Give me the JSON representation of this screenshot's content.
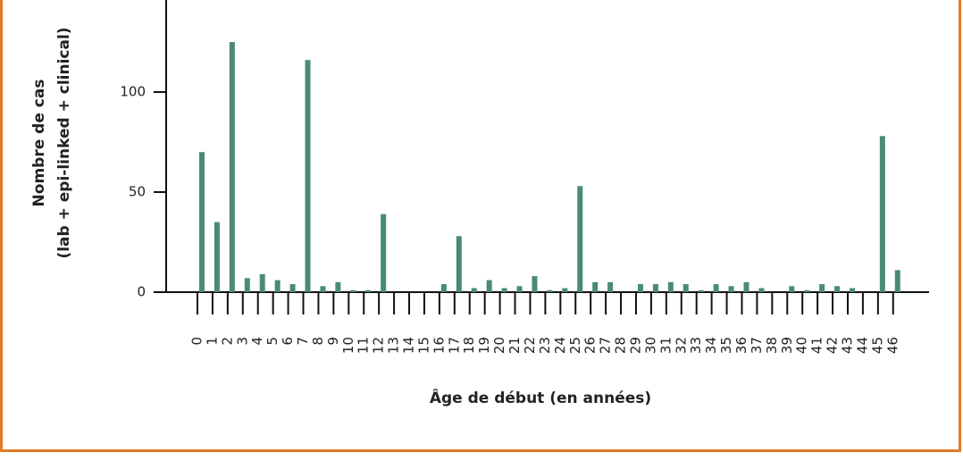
{
  "chart_data": {
    "type": "bar",
    "ylabel": [
      "Nombre de cas",
      "(lab + epi-linked + clinical)"
    ],
    "xlabel": "Âge de début (en années)",
    "categories": [
      "0",
      "1",
      "2",
      "3",
      "4",
      "5",
      "6",
      "7",
      "8",
      "9",
      "10",
      "11",
      "12",
      "13",
      "14",
      "15",
      "16",
      "17",
      "18",
      "19",
      "20",
      "21",
      "22",
      "23",
      "24",
      "25",
      "26",
      "27",
      "28",
      "29",
      "30",
      "31",
      "32",
      "33",
      "34",
      "35",
      "36",
      "37",
      "38",
      "39",
      "40",
      "41",
      "42",
      "43",
      "44",
      "45",
      "46"
    ],
    "values": [
      70,
      35,
      125,
      7,
      9,
      6,
      4,
      116,
      3,
      5,
      1,
      1,
      39,
      0,
      0,
      0,
      4,
      28,
      2,
      6,
      2,
      3,
      8,
      1,
      2,
      53,
      5,
      5,
      0,
      4,
      4,
      5,
      4,
      1,
      4,
      3,
      5,
      2,
      0,
      3,
      1,
      4,
      3,
      2,
      0,
      78,
      11
    ],
    "color": "#4a8a78",
    "ylim": [
      0,
      146
    ],
    "yticks": [
      0,
      50,
      100
    ],
    "grid": false
  }
}
